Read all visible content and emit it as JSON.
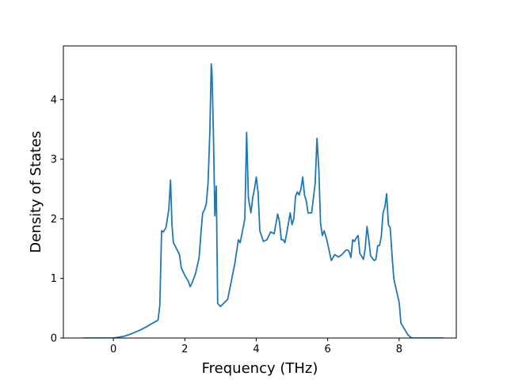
{
  "chart_data": {
    "type": "line",
    "title": "",
    "xlabel": "Frequency (THz)",
    "ylabel": "Density of States",
    "xlim": [
      -1.4,
      9.6
    ],
    "ylim": [
      0,
      4.9
    ],
    "grid": false,
    "legend": "none",
    "xticks": [
      0,
      2,
      4,
      6,
      8
    ],
    "xtick_labels": [
      "0",
      "2",
      "4",
      "6",
      "8"
    ],
    "yticks": [
      0,
      1,
      2,
      3,
      4
    ],
    "ytick_labels": [
      "0",
      "1",
      "2",
      "3",
      "4"
    ],
    "series": [
      {
        "color": "#1f77b4",
        "x": [
          -0.85,
          -0.5,
          0.0,
          0.3,
          0.5,
          0.7,
          0.9,
          1.1,
          1.25,
          1.3,
          1.35,
          1.4,
          1.47,
          1.55,
          1.6,
          1.64,
          1.68,
          1.75,
          1.85,
          1.9,
          2.0,
          2.1,
          2.15,
          2.2,
          2.3,
          2.4,
          2.45,
          2.5,
          2.55,
          2.6,
          2.65,
          2.7,
          2.74,
          2.76,
          2.8,
          2.84,
          2.88,
          2.92,
          3.0,
          3.2,
          3.3,
          3.4,
          3.5,
          3.55,
          3.6,
          3.68,
          3.73,
          3.78,
          3.85,
          3.9,
          3.95,
          4.0,
          4.05,
          4.1,
          4.2,
          4.3,
          4.4,
          4.5,
          4.6,
          4.65,
          4.7,
          4.75,
          4.8,
          4.85,
          4.95,
          5.0,
          5.05,
          5.1,
          5.15,
          5.2,
          5.25,
          5.3,
          5.35,
          5.4,
          5.45,
          5.55,
          5.6,
          5.65,
          5.7,
          5.75,
          5.8,
          5.85,
          5.9,
          5.95,
          6.0,
          6.1,
          6.2,
          6.3,
          6.4,
          6.5,
          6.55,
          6.6,
          6.65,
          6.7,
          6.75,
          6.8,
          6.85,
          6.9,
          7.0,
          7.05,
          7.1,
          7.15,
          7.2,
          7.3,
          7.35,
          7.4,
          7.45,
          7.5,
          7.55,
          7.6,
          7.65,
          7.7,
          7.75,
          7.8,
          7.85,
          7.9,
          8.0,
          8.05,
          8.1,
          8.15,
          8.25,
          8.35,
          8.4,
          9.25
        ],
        "y": [
          0.0,
          0.0,
          0.0,
          0.03,
          0.07,
          0.12,
          0.18,
          0.25,
          0.3,
          0.55,
          1.8,
          1.78,
          1.85,
          2.15,
          2.65,
          1.9,
          1.6,
          1.52,
          1.4,
          1.18,
          1.05,
          0.95,
          0.86,
          0.92,
          1.08,
          1.35,
          1.75,
          2.1,
          2.15,
          2.25,
          2.6,
          3.45,
          4.6,
          4.45,
          3.45,
          2.05,
          2.55,
          0.58,
          0.53,
          0.65,
          0.95,
          1.25,
          1.65,
          1.6,
          1.75,
          2.0,
          3.45,
          2.35,
          2.1,
          2.35,
          2.5,
          2.7,
          2.45,
          1.8,
          1.62,
          1.65,
          1.78,
          1.75,
          2.08,
          1.95,
          1.65,
          1.65,
          1.6,
          1.75,
          2.1,
          1.9,
          2.0,
          2.38,
          2.45,
          2.4,
          2.5,
          2.7,
          2.4,
          2.3,
          2.1,
          2.1,
          2.35,
          2.6,
          3.35,
          2.85,
          1.92,
          1.72,
          1.8,
          1.7,
          1.58,
          1.3,
          1.4,
          1.36,
          1.4,
          1.47,
          1.48,
          1.45,
          1.35,
          1.65,
          1.62,
          1.68,
          1.72,
          1.42,
          1.32,
          1.5,
          1.87,
          1.65,
          1.38,
          1.3,
          1.32,
          1.55,
          1.55,
          1.7,
          2.1,
          2.2,
          2.42,
          1.9,
          1.85,
          1.4,
          1.0,
          0.86,
          0.6,
          0.25,
          0.2,
          0.15,
          0.05,
          0.0,
          0.0,
          0.0
        ]
      }
    ]
  }
}
